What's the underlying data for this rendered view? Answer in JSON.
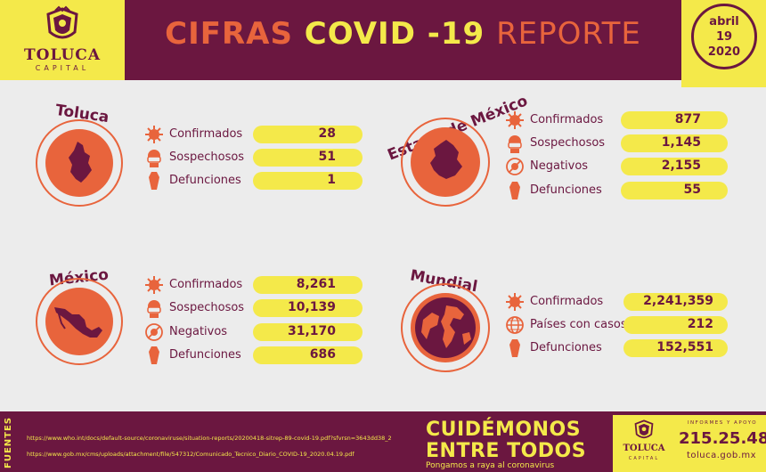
{
  "header": {
    "logo_name": "TOLUCA",
    "logo_sub": "CAPITAL",
    "title_word1": "CIFRAS",
    "title_word2": "COVID",
    "title_word3": "-19",
    "title_word4": "REPORTE",
    "date_month": "abril",
    "date_day": "19",
    "date_year": "2020"
  },
  "colors": {
    "maroon": "#6b1740",
    "orange": "#e8643c",
    "yellow": "#f4e94a",
    "background": "#ececec"
  },
  "sections": {
    "toluca": {
      "title": "Toluca",
      "icon": "toluca-map-icon",
      "stats": [
        {
          "label": "Confirmados",
          "value": "28",
          "icon": "virus-icon"
        },
        {
          "label": "Sospechosos",
          "value": "51",
          "icon": "masked-person-icon"
        },
        {
          "label": "Defunciones",
          "value": "1",
          "icon": "coffin-icon"
        }
      ]
    },
    "edomex": {
      "title": "Estado de México",
      "icon": "edomex-map-icon",
      "stats": [
        {
          "label": "Confirmados",
          "value": "877",
          "icon": "virus-icon"
        },
        {
          "label": "Sospechosos",
          "value": "1,145",
          "icon": "masked-person-icon"
        },
        {
          "label": "Negativos",
          "value": "2,155",
          "icon": "negative-virus-icon"
        },
        {
          "label": "Defunciones",
          "value": "55",
          "icon": "coffin-icon"
        }
      ]
    },
    "mexico": {
      "title": "México",
      "icon": "mexico-map-icon",
      "stats": [
        {
          "label": "Confirmados",
          "value": "8,261",
          "icon": "virus-icon"
        },
        {
          "label": "Sospechosos",
          "value": "10,139",
          "icon": "masked-person-icon"
        },
        {
          "label": "Negativos",
          "value": "31,170",
          "icon": "negative-virus-icon"
        },
        {
          "label": "Defunciones",
          "value": "686",
          "icon": "coffin-icon"
        }
      ]
    },
    "mundial": {
      "title": "Mundial",
      "icon": "globe-icon",
      "stats": [
        {
          "label": "Confirmados",
          "value": "2,241,359",
          "icon": "virus-icon"
        },
        {
          "label": "Países con casos",
          "value": "212",
          "icon": "globe-small-icon"
        },
        {
          "label": "Defunciones",
          "value": "152,551",
          "icon": "coffin-icon"
        }
      ]
    }
  },
  "footer": {
    "fuentes": "FUENTES",
    "source1": "https://www.who.int/docs/default-source/coronaviruse/situation-reports/20200418-sitrep-89-covid-19.pdf?sfvrsn=3643dd38_2",
    "source2": "https://www.gob.mx/cms/uploads/attachment/file/547312/Comunicado_Tecnico_Diario_COVID-19_2020.04.19.pdf",
    "slogan_line1": "CUIDÉMONOS",
    "slogan_line2": "ENTRE TODOS",
    "slogan_line3": "Pongamos a raya al coronavirus",
    "logo_name": "TOLUCA",
    "logo_sub": "CAPITAL",
    "info_label": "INFORMES Y APOYO",
    "phone": "215.25.48",
    "website": "toluca.gob.mx"
  }
}
